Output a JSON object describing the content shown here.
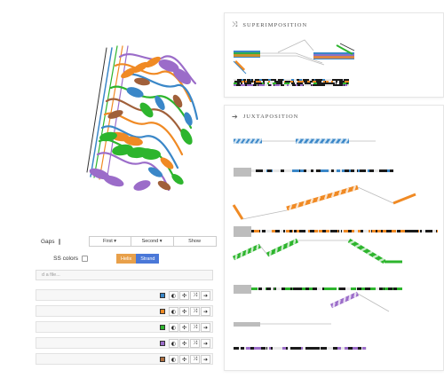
{
  "superposition": {
    "title": "SUPERIMPOSITION",
    "icon": "shuffle-icon"
  },
  "juxtaposition": {
    "title": "JUXTAPOSITION",
    "icon": "arrow-right-icon"
  },
  "controls": {
    "gaps_label": "Gaps",
    "ss_colors_label": "SS colors",
    "first_label": "First ▾",
    "second_label": "Second ▾",
    "show_label": "Show",
    "helix_label": "Helix",
    "strand_label": "Strand",
    "file_placeholder": "d a file..."
  },
  "chains": [
    {
      "color": "#3a87c8"
    },
    {
      "color": "#f08a24"
    },
    {
      "color": "#2db52d"
    },
    {
      "color": "#9b6cc9"
    },
    {
      "color": "#b07040"
    }
  ],
  "colors": {
    "blue": "#3a87c8",
    "orange": "#f08a24",
    "green": "#2db52d",
    "purple": "#9b6cc9",
    "brown": "#a0603a",
    "helix": "#e8a04a",
    "strand": "#4a78d8"
  }
}
